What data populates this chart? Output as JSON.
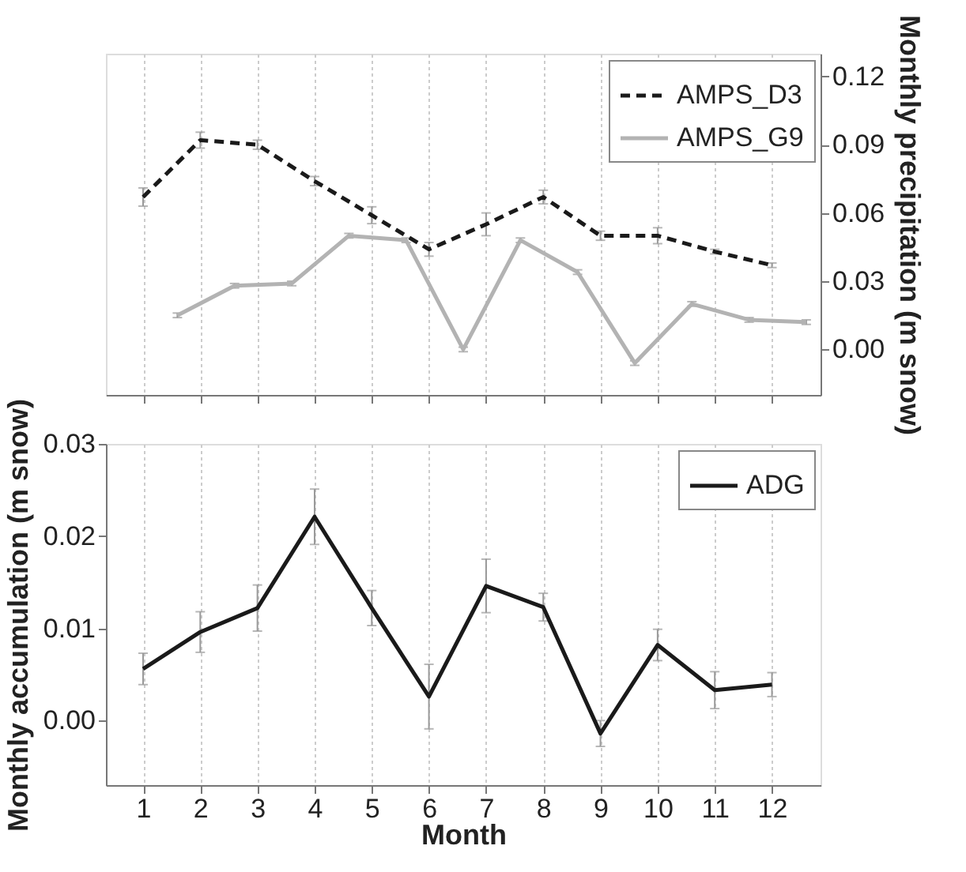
{
  "chart_data": [
    {
      "type": "line",
      "y2label": "Monthly precipitation (m snow)",
      "x": [
        1,
        2,
        3,
        4,
        5,
        6,
        7,
        8,
        9,
        10,
        11,
        12
      ],
      "xlim": [
        0.35,
        12.85
      ],
      "xticks": [
        {
          "value": 1,
          "label": null
        },
        {
          "value": 2,
          "label": null
        },
        {
          "value": 3,
          "label": null
        },
        {
          "value": 4,
          "label": null
        },
        {
          "value": 5,
          "label": null
        },
        {
          "value": 6,
          "label": null
        },
        {
          "value": 7,
          "label": null
        },
        {
          "value": 8,
          "label": null
        },
        {
          "value": 9,
          "label": null
        },
        {
          "value": 10,
          "label": null
        },
        {
          "value": 11,
          "label": null
        },
        {
          "value": 12,
          "label": null
        }
      ],
      "y2lim": [
        -0.02,
        0.13
      ],
      "y2ticks": [
        {
          "value": 0,
          "label": "0.00"
        },
        {
          "value": 0.03,
          "label": "0.03"
        },
        {
          "value": 0.06,
          "label": "0.06"
        },
        {
          "value": 0.09,
          "label": "0.09"
        },
        {
          "value": 0.12,
          "label": "0.12"
        }
      ],
      "grid": "x",
      "legend": "top right",
      "tick_labels": "y",
      "series": [
        {
          "name": "AMPS_D3",
          "color": "#1a1a1a",
          "line_style": "dashed",
          "axis": "y2",
          "values": [
            0.067,
            0.092,
            0.09,
            0.074,
            0.059,
            0.044,
            0.055,
            0.067,
            0.05,
            0.05,
            0.043,
            0.037
          ],
          "errors": [
            0.004,
            0.0035,
            0.002,
            0.002,
            0.0037,
            0.003,
            0.005,
            0.003,
            0.002,
            0.0035,
            0.001,
            0.001
          ]
        },
        {
          "name": "AMPS_G9",
          "color": "#b3b3b3",
          "line_style": "solid",
          "axis": "y2",
          "x": [
            1.6,
            2.6,
            3.6,
            4.6,
            5.6,
            6.6,
            7.6,
            8.6,
            9.6,
            10.6,
            11.6,
            12.6
          ],
          "values": [
            0.015,
            0.028,
            0.029,
            0.05,
            0.048,
            0.0,
            0.048,
            0.034,
            -0.006,
            0.02,
            0.013,
            0.012
          ],
          "errors": [
            0.001,
            0.001,
            0.001,
            0.001,
            0.001,
            0.001,
            0.001,
            0.001,
            0.001,
            0.001,
            0.001,
            0.001
          ]
        }
      ]
    },
    {
      "type": "line",
      "xlabel": "Month",
      "ylabel": "Monthly accumulation (m snow)",
      "x": [
        1,
        2,
        3,
        4,
        5,
        6,
        7,
        8,
        9,
        10,
        11,
        12
      ],
      "xlim": [
        0.35,
        12.85
      ],
      "xticks": [
        1,
        2,
        3,
        4,
        5,
        6,
        7,
        8,
        9,
        10,
        11,
        12
      ],
      "ylim": [
        -0.007,
        0.03
      ],
      "yticks": [
        {
          "value": 0,
          "label": "0.00"
        },
        {
          "value": 0.01,
          "label": "0.01"
        },
        {
          "value": 0.02,
          "label": "0.02"
        },
        {
          "value": 0.03,
          "label": "0.03"
        }
      ],
      "grid": "x",
      "legend": "top right",
      "series": [
        {
          "name": "ADG",
          "color": "#1a1a1a",
          "line_style": "solid",
          "values": [
            0.0056,
            0.0096,
            0.0122,
            0.0221,
            0.0122,
            0.0026,
            0.0146,
            0.0123,
            -0.0014,
            0.0082,
            0.0033,
            0.0039
          ],
          "errors": [
            0.0017,
            0.0022,
            0.0025,
            0.003,
            0.0019,
            0.0035,
            0.0029,
            0.0015,
            0.0014,
            0.0017,
            0.002,
            0.0013
          ]
        }
      ]
    }
  ]
}
